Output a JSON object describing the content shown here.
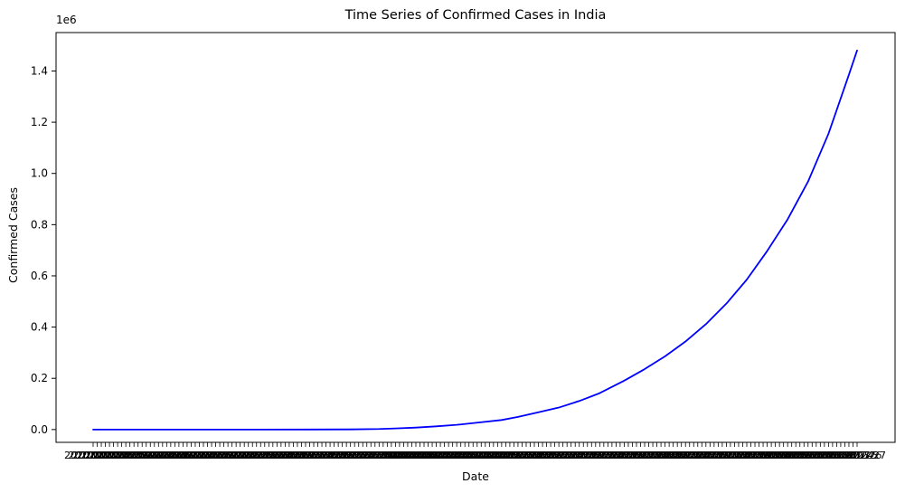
{
  "chart_data": {
    "type": "line",
    "title": "Time Series of Confirmed Cases in India",
    "xlabel": "Date",
    "ylabel": "Confirmed Cases",
    "y_offset_text": "1e6",
    "ylim": [
      -0.05,
      1.55
    ],
    "y_ticks": [
      0.0,
      0.2,
      0.4,
      0.6,
      0.8,
      1.0,
      1.2,
      1.4
    ],
    "y_tick_labels": [
      "0.0",
      "0.2",
      "0.4",
      "0.6",
      "0.8",
      "1.0",
      "1.2",
      "1.4"
    ],
    "x_start_date": "2020-01-22",
    "x_end_date": "2020-07-27",
    "x_first_tick_label": "2020-01-22",
    "x_last_tick_label": "2020-07-27",
    "grid": false,
    "series": [
      {
        "color": "#0000ff",
        "points": [
          [
            "2020-01-22",
            0.0
          ],
          [
            "2020-01-30",
            0.0
          ],
          [
            "2020-02-15",
            0.0
          ],
          [
            "2020-03-01",
            0.0
          ],
          [
            "2020-03-15",
            0.0001
          ],
          [
            "2020-03-25",
            0.0006
          ],
          [
            "2020-04-01",
            0.002
          ],
          [
            "2020-04-05",
            0.0044
          ],
          [
            "2020-04-10",
            0.0076
          ],
          [
            "2020-04-15",
            0.0124
          ],
          [
            "2020-04-20",
            0.0183
          ],
          [
            "2020-04-25",
            0.0267
          ],
          [
            "2020-05-01",
            0.0372
          ],
          [
            "2020-05-05",
            0.0494
          ],
          [
            "2020-05-10",
            0.0676
          ],
          [
            "2020-05-15",
            0.0858
          ],
          [
            "2020-05-20",
            0.1115
          ],
          [
            "2020-05-25",
            0.1421
          ],
          [
            "2020-05-31",
            0.1908
          ],
          [
            "2020-06-05",
            0.236
          ],
          [
            "2020-06-10",
            0.286
          ],
          [
            "2020-06-15",
            0.3437
          ],
          [
            "2020-06-20",
            0.4115
          ],
          [
            "2020-06-25",
            0.4916
          ],
          [
            "2020-06-30",
            0.5853
          ],
          [
            "2020-07-05",
            0.6973
          ],
          [
            "2020-07-10",
            0.8208
          ],
          [
            "2020-07-15",
            0.9682
          ],
          [
            "2020-07-20",
            1.155
          ],
          [
            "2020-07-25",
            1.3854
          ],
          [
            "2020-07-27",
            1.48
          ]
        ]
      }
    ]
  }
}
